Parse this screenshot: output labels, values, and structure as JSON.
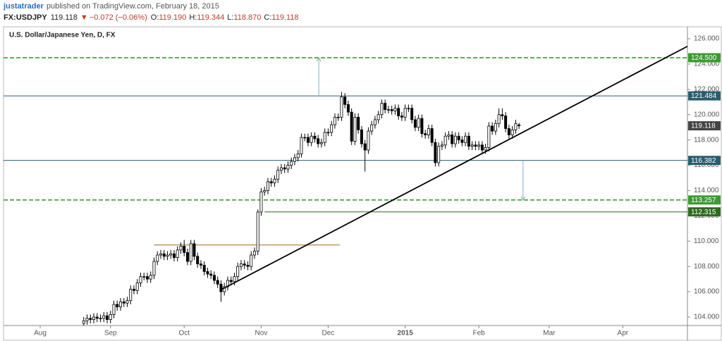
{
  "header": {
    "author": "justatrader",
    "published": "published on TradingView.com, February 18, 2015",
    "symbol": "FX:USDJPY",
    "price": "119.118",
    "arrow": "▼",
    "change": "−0.072 (−0.06%)",
    "ohlc": [
      {
        "key": "O:",
        "value": "119.190"
      },
      {
        "key": "H:",
        "value": "119.344"
      },
      {
        "key": "L:",
        "value": "118.870"
      },
      {
        "key": "C:",
        "value": "119.118"
      }
    ]
  },
  "chart_data": {
    "type": "candlestick",
    "title": "U.S. Dollar/Japanese Yen, D, FX",
    "x": [
      13,
      14,
      15,
      16,
      17,
      18,
      19,
      20,
      21,
      22,
      23,
      24,
      25,
      26,
      27,
      28,
      29,
      30,
      31,
      32,
      33,
      34,
      35,
      36,
      37,
      38,
      39,
      40,
      41,
      42,
      43,
      44,
      45,
      46,
      47,
      48,
      49,
      50,
      51,
      52,
      53,
      54,
      55,
      56,
      57,
      58,
      59,
      60,
      61,
      62,
      63,
      64,
      65,
      66,
      67,
      68,
      69,
      70,
      71,
      72,
      73,
      74,
      75,
      76,
      77,
      78,
      79,
      80,
      81,
      82,
      83,
      84,
      85,
      86,
      87,
      88,
      89,
      90,
      91,
      92,
      93,
      94,
      95,
      96,
      97,
      98,
      99,
      100,
      101,
      102,
      103,
      104,
      105,
      106,
      107,
      108,
      109,
      110,
      111,
      112,
      113,
      114,
      115,
      116,
      117,
      118,
      119,
      120,
      121,
      122,
      123,
      124,
      125,
      126,
      127,
      128,
      129,
      130,
      131,
      132,
      133,
      134,
      135,
      136,
      137,
      138,
      139,
      140,
      141,
      142,
      143
    ],
    "candles": [
      [
        103.5,
        104.0,
        103.2,
        103.7
      ],
      [
        103.7,
        104.2,
        103.4,
        103.9
      ],
      [
        103.9,
        104.2,
        103.5,
        103.8
      ],
      [
        103.8,
        104.3,
        103.5,
        104.0
      ],
      [
        104.0,
        104.3,
        103.6,
        103.9
      ],
      [
        103.9,
        104.2,
        103.6,
        103.9
      ],
      [
        103.9,
        104.4,
        103.6,
        104.1
      ],
      [
        104.1,
        104.4,
        103.5,
        103.8
      ],
      [
        103.8,
        104.5,
        103.5,
        104.2
      ],
      [
        104.2,
        105.3,
        103.9,
        105.0
      ],
      [
        105.0,
        105.3,
        104.5,
        104.8
      ],
      [
        104.8,
        105.5,
        104.5,
        105.2
      ],
      [
        105.2,
        105.5,
        104.8,
        105.1
      ],
      [
        105.1,
        105.6,
        104.8,
        105.3
      ],
      [
        105.3,
        106.5,
        105.0,
        106.2
      ],
      [
        106.2,
        106.5,
        105.8,
        106.1
      ],
      [
        106.1,
        107.0,
        105.8,
        106.7
      ],
      [
        106.7,
        107.5,
        106.4,
        107.2
      ],
      [
        107.2,
        107.5,
        106.9,
        107.2
      ],
      [
        107.2,
        107.5,
        106.7,
        107.0
      ],
      [
        107.0,
        107.6,
        106.7,
        107.3
      ],
      [
        107.3,
        108.7,
        107.0,
        108.4
      ],
      [
        108.4,
        109.2,
        108.1,
        108.9
      ],
      [
        108.9,
        109.3,
        108.6,
        109.0
      ],
      [
        109.0,
        109.3,
        108.5,
        108.8
      ],
      [
        108.8,
        109.2,
        108.5,
        108.9
      ],
      [
        108.9,
        109.3,
        108.6,
        109.0
      ],
      [
        109.0,
        109.3,
        108.4,
        108.7
      ],
      [
        108.7,
        109.6,
        108.4,
        109.3
      ],
      [
        109.3,
        109.9,
        109.0,
        109.6
      ],
      [
        109.6,
        110.1,
        108.8,
        109.1
      ],
      [
        109.1,
        109.4,
        108.1,
        108.4
      ],
      [
        108.4,
        110.1,
        108.1,
        109.8
      ],
      [
        109.8,
        110.1,
        108.5,
        108.8
      ],
      [
        108.8,
        109.1,
        107.9,
        108.2
      ],
      [
        108.2,
        108.5,
        107.8,
        108.1
      ],
      [
        108.1,
        108.4,
        107.3,
        107.6
      ],
      [
        107.6,
        107.9,
        107.1,
        107.4
      ],
      [
        107.4,
        107.7,
        107.0,
        107.3
      ],
      [
        107.3,
        107.6,
        106.6,
        106.9
      ],
      [
        106.9,
        107.2,
        106.3,
        106.6
      ],
      [
        106.6,
        106.9,
        105.2,
        106.0
      ],
      [
        106.0,
        106.7,
        105.7,
        106.4
      ],
      [
        106.4,
        107.2,
        106.1,
        106.9
      ],
      [
        106.9,
        107.2,
        106.5,
        106.8
      ],
      [
        106.8,
        107.5,
        106.5,
        107.2
      ],
      [
        107.2,
        108.3,
        106.9,
        108.0
      ],
      [
        108.0,
        108.5,
        107.7,
        108.2
      ],
      [
        108.2,
        108.5,
        107.8,
        108.1
      ],
      [
        108.1,
        108.4,
        107.7,
        108.0
      ],
      [
        108.0,
        109.2,
        107.7,
        108.9
      ],
      [
        108.9,
        109.5,
        108.6,
        109.2
      ],
      [
        109.2,
        112.5,
        108.9,
        112.3
      ],
      [
        112.3,
        114.2,
        112.0,
        113.9
      ],
      [
        113.9,
        114.3,
        113.6,
        114.0
      ],
      [
        114.0,
        115.0,
        113.7,
        114.7
      ],
      [
        114.7,
        115.0,
        114.3,
        114.6
      ],
      [
        114.6,
        115.2,
        114.3,
        114.9
      ],
      [
        114.9,
        115.9,
        114.6,
        115.6
      ],
      [
        115.6,
        116.1,
        115.3,
        115.8
      ],
      [
        115.8,
        116.1,
        115.4,
        115.7
      ],
      [
        115.7,
        116.3,
        115.4,
        116.0
      ],
      [
        116.0,
        116.6,
        115.7,
        116.3
      ],
      [
        116.3,
        116.9,
        116.0,
        116.6
      ],
      [
        116.6,
        117.2,
        116.3,
        116.9
      ],
      [
        116.9,
        118.5,
        116.6,
        118.2
      ],
      [
        118.2,
        118.5,
        117.9,
        118.2
      ],
      [
        118.2,
        118.5,
        117.5,
        117.8
      ],
      [
        117.8,
        118.6,
        117.5,
        118.3
      ],
      [
        118.3,
        118.6,
        117.8,
        118.1
      ],
      [
        118.1,
        118.4,
        117.4,
        117.7
      ],
      [
        117.7,
        118.1,
        117.4,
        117.8
      ],
      [
        117.8,
        118.9,
        117.5,
        118.6
      ],
      [
        118.6,
        118.9,
        118.3,
        118.6
      ],
      [
        118.6,
        119.5,
        118.3,
        119.2
      ],
      [
        119.2,
        120.1,
        118.9,
        119.8
      ],
      [
        119.8,
        120.1,
        119.5,
        119.8
      ],
      [
        119.8,
        121.8,
        119.5,
        121.4
      ],
      [
        121.4,
        121.7,
        120.5,
        120.8
      ],
      [
        120.8,
        121.1,
        119.9,
        120.2
      ],
      [
        120.2,
        120.5,
        117.6,
        117.9
      ],
      [
        117.9,
        120.1,
        117.6,
        119.8
      ],
      [
        119.8,
        120.1,
        118.5,
        118.8
      ],
      [
        118.8,
        119.1,
        117.4,
        117.7
      ],
      [
        117.7,
        118.0,
        115.5,
        117.2
      ],
      [
        117.2,
        119.0,
        116.9,
        118.7
      ],
      [
        118.7,
        119.5,
        118.4,
        119.2
      ],
      [
        119.2,
        119.9,
        118.9,
        119.6
      ],
      [
        119.6,
        120.3,
        119.3,
        120.0
      ],
      [
        120.0,
        121.2,
        119.7,
        120.9
      ],
      [
        120.9,
        121.2,
        120.1,
        120.4
      ],
      [
        120.4,
        120.7,
        120.1,
        120.4
      ],
      [
        120.4,
        120.7,
        120.0,
        120.3
      ],
      [
        120.3,
        120.8,
        120.0,
        120.5
      ],
      [
        120.5,
        120.8,
        119.6,
        119.9
      ],
      [
        119.9,
        120.2,
        119.5,
        119.8
      ],
      [
        119.8,
        120.8,
        119.5,
        120.5
      ],
      [
        120.5,
        120.8,
        120.2,
        120.5
      ],
      [
        120.5,
        120.8,
        119.3,
        119.6
      ],
      [
        119.6,
        119.9,
        118.7,
        119.0
      ],
      [
        119.0,
        120.0,
        118.7,
        119.7
      ],
      [
        119.7,
        120.0,
        118.2,
        118.5
      ],
      [
        118.5,
        118.8,
        118.1,
        118.4
      ],
      [
        118.4,
        119.2,
        118.1,
        118.9
      ],
      [
        118.9,
        119.2,
        117.5,
        117.8
      ],
      [
        117.8,
        118.1,
        115.9,
        116.2
      ],
      [
        116.2,
        117.8,
        115.9,
        117.5
      ],
      [
        117.5,
        117.9,
        117.2,
        117.6
      ],
      [
        117.6,
        118.6,
        117.3,
        118.3
      ],
      [
        118.3,
        118.7,
        118.0,
        118.4
      ],
      [
        118.4,
        118.7,
        117.4,
        117.7
      ],
      [
        117.7,
        118.6,
        117.4,
        118.3
      ],
      [
        118.3,
        118.6,
        117.7,
        118.0
      ],
      [
        118.0,
        118.3,
        117.5,
        117.8
      ],
      [
        117.8,
        118.6,
        117.5,
        118.3
      ],
      [
        118.3,
        118.6,
        117.2,
        117.5
      ],
      [
        117.5,
        117.9,
        117.2,
        117.6
      ],
      [
        117.6,
        117.9,
        117.2,
        117.5
      ],
      [
        117.5,
        117.9,
        117.2,
        117.6
      ],
      [
        117.6,
        117.9,
        116.9,
        117.2
      ],
      [
        117.2,
        117.7,
        116.9,
        117.4
      ],
      [
        117.4,
        119.4,
        117.1,
        119.1
      ],
      [
        119.1,
        119.4,
        118.4,
        118.7
      ],
      [
        118.7,
        119.6,
        118.4,
        119.3
      ],
      [
        119.3,
        120.5,
        119.0,
        120.0
      ],
      [
        120.0,
        120.5,
        119.6,
        119.9
      ],
      [
        119.9,
        120.2,
        118.6,
        118.9
      ],
      [
        118.9,
        119.2,
        118.1,
        118.4
      ],
      [
        118.4,
        119.1,
        118.1,
        118.8
      ],
      [
        118.8,
        119.6,
        118.5,
        119.3
      ],
      [
        119.19,
        119.344,
        118.87,
        119.118
      ]
    ],
    "up_color": "#ffffff",
    "down_color": "#000000",
    "wick_color": "#000000",
    "xlim": [
      -10.95,
      193.3
    ],
    "xticks": [
      {
        "value": 0,
        "label": "Aug"
      },
      {
        "value": 21,
        "label": "Sep"
      },
      {
        "value": 43,
        "label": "Oct"
      },
      {
        "value": 66,
        "label": "Nov"
      },
      {
        "value": 86,
        "label": "Dec"
      },
      {
        "value": 109,
        "label": "2015"
      },
      {
        "value": 131,
        "label": "Feb"
      },
      {
        "value": 152,
        "label": "Mar"
      },
      {
        "value": 174,
        "label": "Apr"
      }
    ],
    "ylim": [
      103.331,
      126.947
    ],
    "yticks": [
      {
        "value": 104,
        "label": "104.000"
      },
      {
        "value": 106,
        "label": "106.000"
      },
      {
        "value": 108,
        "label": "108.000"
      },
      {
        "value": 110,
        "label": "110.000"
      },
      {
        "value": 112,
        "label": "112.000"
      },
      {
        "value": 114,
        "label": "114.000"
      },
      {
        "value": 116,
        "label": "116.000"
      },
      {
        "value": 118,
        "label": "118.000"
      },
      {
        "value": 120,
        "label": "120.000"
      },
      {
        "value": 122,
        "label": "122.000"
      },
      {
        "value": 124,
        "label": "124.000"
      },
      {
        "value": 126,
        "label": "126.000"
      }
    ],
    "hlines": [
      {
        "value": 124.5,
        "label": "124.500",
        "color": "#3d9a32",
        "style": "dashed"
      },
      {
        "value": 121.484,
        "label": "121.484",
        "color": "#2a5d6e",
        "style": "solid"
      },
      {
        "value": 116.382,
        "label": "116.382",
        "color": "#2a5d6e",
        "style": "solid"
      },
      {
        "value": 113.257,
        "label": "113.257",
        "color": "#3d9a32",
        "style": "dashed"
      },
      {
        "value": 112.315,
        "label": "112.315",
        "color": "#2e6b1f",
        "style": "solid",
        "start": 67
      }
    ],
    "last_price": {
      "value": 119.118,
      "label": "119.118",
      "color": "#444444"
    },
    "trendline": {
      "x": [
        54.3,
        193.3
      ],
      "y": [
        106.2,
        125.4
      ],
      "color": "#000000"
    },
    "segment": {
      "x": [
        34,
        89.5
      ],
      "y": [
        109.7,
        109.7
      ],
      "color": "#b39a63"
    },
    "arrows": [
      {
        "x": 83.2,
        "from": 121.484,
        "to": 124.5
      },
      {
        "x": 144.2,
        "from": 116.382,
        "to": 113.257
      }
    ],
    "arrow_color": "#7fb2c4"
  }
}
